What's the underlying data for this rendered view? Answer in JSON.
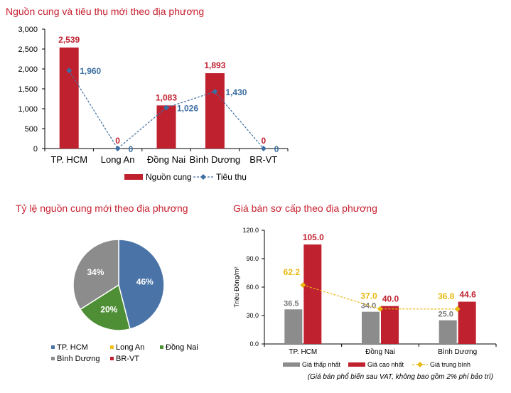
{
  "colors": {
    "title": "#c8202f",
    "bar_red": "#c0212f",
    "line_blue": "#3d6fa3",
    "grey": "#8c8c8c",
    "gold": "#e8b911",
    "pie_blue": "#4a74a7",
    "pie_green": "#4e8f35",
    "pie_grey": "#8c8c8c",
    "pie_gold": "#f0c020",
    "pie_red": "#c0212f"
  },
  "chart_data": [
    {
      "type": "bar",
      "title": "Nguồn cung và tiêu thụ mới theo địa phương",
      "categories": [
        "TP. HCM",
        "Long An",
        "Đồng Nai",
        "Bình Dương",
        "BR-VT"
      ],
      "series": [
        {
          "name": "Nguồn cung",
          "type": "bar",
          "values": [
            2539,
            0,
            1083,
            1893,
            0
          ],
          "labels": [
            "2,539",
            "0",
            "1,083",
            "1,893",
            "0"
          ]
        },
        {
          "name": "Tiêu thụ",
          "type": "line",
          "values": [
            1960,
            0,
            1026,
            1430,
            0
          ],
          "labels": [
            "1,960",
            "0",
            "1,026",
            "1,430",
            "0"
          ]
        }
      ],
      "ylim": [
        0,
        3000
      ],
      "yticks": [
        0,
        500,
        1000,
        1500,
        2000,
        2500,
        3000
      ],
      "ytick_labels": [
        "0",
        "500",
        "1,000",
        "1,500",
        "2,000",
        "2,500",
        "3,000"
      ],
      "legend": "bottom"
    },
    {
      "type": "pie",
      "title": "Tỷ lệ nguồn cung mới theo địa phương",
      "categories": [
        "TP. HCM",
        "Long An",
        "Đồng Nai",
        "Bình Dương",
        "BR-VT"
      ],
      "values": [
        46,
        0,
        20,
        34,
        0
      ],
      "labels": [
        "46%",
        "",
        "20%",
        "34%",
        ""
      ],
      "legend": "bottom"
    },
    {
      "type": "bar",
      "title": "Giá bán sơ cấp theo địa phương",
      "ylabel": "Triệu Đồng/m²",
      "categories": [
        "TP. HCM",
        "Đồng Nai",
        "Bình Dương"
      ],
      "series": [
        {
          "name": "Giá thấp nhất",
          "type": "bar",
          "values": [
            36.5,
            34.0,
            25.0
          ],
          "labels": [
            "36.5",
            "34.0",
            "25.0"
          ]
        },
        {
          "name": "Giá cao nhất",
          "type": "bar",
          "values": [
            105.0,
            40.0,
            44.6
          ],
          "labels": [
            "105.0",
            "40.0",
            "44.6"
          ]
        },
        {
          "name": "Giá trung bình",
          "type": "line",
          "values": [
            62.2,
            37.0,
            36.8
          ],
          "labels": [
            "62.2",
            "37.0",
            "36.8"
          ]
        }
      ],
      "ylim": [
        0,
        120
      ],
      "yticks": [
        0,
        30,
        60,
        90,
        120
      ],
      "ytick_labels": [
        "0.0",
        "30.0",
        "60.0",
        "90.0",
        "120.0"
      ],
      "note": "(Giá bán phổ biến sau VAT, không bao gồm 2% phí bảo trì)",
      "legend": "bottom"
    }
  ]
}
